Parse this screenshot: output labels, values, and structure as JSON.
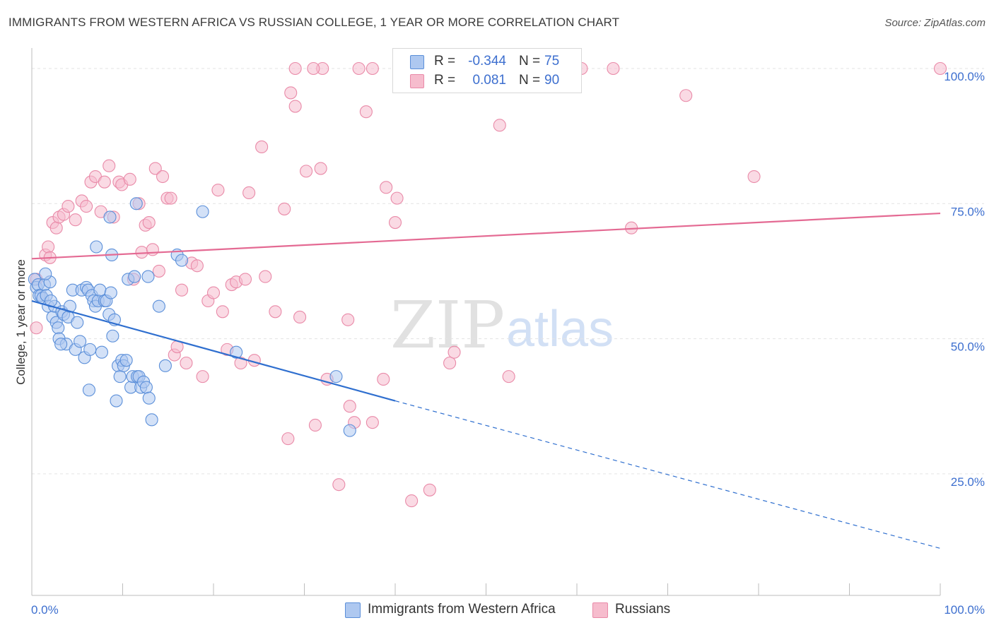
{
  "title": "IMMIGRANTS FROM WESTERN AFRICA VS RUSSIAN COLLEGE, 1 YEAR OR MORE CORRELATION CHART",
  "source": "Source: ZipAtlas.com",
  "watermark": {
    "zip": "ZIP",
    "atlas": "atlas"
  },
  "colors": {
    "blue_fill": "#aec8f0",
    "blue_stroke": "#5b8fd9",
    "blue_line": "#2f6fcf",
    "pink_fill": "#f6bccd",
    "pink_stroke": "#e98aa8",
    "pink_line": "#e46a93",
    "axis_text": "#3d6fcf",
    "grid": "#e3e3e3"
  },
  "legend": {
    "rows": [
      {
        "series": "blue",
        "r_label": "R =",
        "r_value": "-0.344",
        "n_label": "N =",
        "n_value": "75"
      },
      {
        "series": "pink",
        "r_label": "R =",
        "r_value": "0.081",
        "n_label": "N =",
        "n_value": "90"
      }
    ]
  },
  "chart_data": {
    "type": "scatter",
    "title": "IMMIGRANTS FROM WESTERN AFRICA VS RUSSIAN COLLEGE, 1 YEAR OR MORE CORRELATION CHART",
    "xlabel": "",
    "ylabel": "College, 1 year or more",
    "xlim": [
      0,
      100
    ],
    "ylim": [
      0,
      104
    ],
    "x_tick_labels": [
      "0.0%",
      "100.0%"
    ],
    "y_tick_values": [
      25,
      50,
      75,
      100
    ],
    "y_tick_labels": [
      "25.0%",
      "50.0%",
      "75.0%",
      "100.0%"
    ],
    "grid": true,
    "legend_position": "bottom",
    "series": [
      {
        "name": "Immigrants from Western Africa",
        "color": "blue",
        "trend": {
          "x0": 0,
          "y0": 57.0,
          "x1": 40,
          "y1": 38.5,
          "dash_to_x": 100,
          "dash_to_y": 11.2
        },
        "points": [
          [
            0.3,
            61
          ],
          [
            0.5,
            59.5
          ],
          [
            0.7,
            60
          ],
          [
            0.8,
            58
          ],
          [
            1,
            58
          ],
          [
            1.2,
            57.5
          ],
          [
            1.4,
            60
          ],
          [
            1.6,
            58
          ],
          [
            1.8,
            56
          ],
          [
            2,
            60.5
          ],
          [
            2.3,
            54
          ],
          [
            2.5,
            56
          ],
          [
            2.7,
            53
          ],
          [
            2.9,
            52
          ],
          [
            3,
            50
          ],
          [
            3.3,
            55
          ],
          [
            3.5,
            54.5
          ],
          [
            3.8,
            49
          ],
          [
            4,
            54
          ],
          [
            4.2,
            56
          ],
          [
            4.5,
            59
          ],
          [
            4.8,
            48
          ],
          [
            5,
            53
          ],
          [
            5.3,
            49.5
          ],
          [
            5.5,
            59
          ],
          [
            5.8,
            46.5
          ],
          [
            6,
            59.5
          ],
          [
            6.2,
            59
          ],
          [
            6.4,
            48
          ],
          [
            6.6,
            58
          ],
          [
            6.8,
            57
          ],
          [
            7,
            56
          ],
          [
            7.3,
            57
          ],
          [
            7.5,
            59
          ],
          [
            7.7,
            47.5
          ],
          [
            8,
            57
          ],
          [
            8.2,
            57
          ],
          [
            8.5,
            54.5
          ],
          [
            8.7,
            58.5
          ],
          [
            8.9,
            50.5
          ],
          [
            9.1,
            53.5
          ],
          [
            9.3,
            38.5
          ],
          [
            9.5,
            45
          ],
          [
            9.7,
            43
          ],
          [
            9.9,
            46
          ],
          [
            10.1,
            45
          ],
          [
            10.4,
            46
          ],
          [
            10.6,
            61
          ],
          [
            10.9,
            41
          ],
          [
            11.1,
            43
          ],
          [
            11.3,
            61.5
          ],
          [
            11.6,
            43
          ],
          [
            11.8,
            43
          ],
          [
            12,
            41
          ],
          [
            12.3,
            42
          ],
          [
            12.6,
            41
          ],
          [
            12.9,
            39
          ],
          [
            13.2,
            35
          ],
          [
            14,
            56
          ],
          [
            14.7,
            45
          ],
          [
            16,
            65.5
          ],
          [
            16.5,
            64.5
          ],
          [
            18.8,
            73.5
          ],
          [
            22.5,
            47.5
          ],
          [
            33.5,
            43
          ],
          [
            35,
            33
          ],
          [
            6.3,
            40.5
          ],
          [
            8.6,
            72.5
          ],
          [
            11.5,
            75
          ],
          [
            12.8,
            61.5
          ],
          [
            3.2,
            49
          ],
          [
            1.5,
            62
          ],
          [
            2.1,
            57
          ],
          [
            7.1,
            67
          ],
          [
            8.8,
            65.5
          ]
        ]
      },
      {
        "name": "Russians",
        "color": "pink",
        "trend": {
          "x0": 0,
          "y0": 64.8,
          "x1": 100,
          "y1": 73.2
        },
        "points": [
          [
            0.5,
            61
          ],
          [
            0.5,
            52
          ],
          [
            1.5,
            65.5
          ],
          [
            1.8,
            67
          ],
          [
            2,
            65
          ],
          [
            2.3,
            71.5
          ],
          [
            2.7,
            70.5
          ],
          [
            3,
            72.5
          ],
          [
            3.5,
            73
          ],
          [
            4,
            74.5
          ],
          [
            4.8,
            72
          ],
          [
            5.5,
            75.5
          ],
          [
            6,
            74.5
          ],
          [
            6.5,
            79
          ],
          [
            7,
            80
          ],
          [
            7.6,
            73.5
          ],
          [
            8,
            79
          ],
          [
            8.5,
            82
          ],
          [
            9,
            72.5
          ],
          [
            9.6,
            79
          ],
          [
            9.9,
            78.5
          ],
          [
            10.8,
            79.5
          ],
          [
            11.2,
            61
          ],
          [
            11.8,
            75
          ],
          [
            12.1,
            66
          ],
          [
            12.5,
            71
          ],
          [
            12.9,
            71.5
          ],
          [
            13.3,
            66.5
          ],
          [
            13.6,
            81.5
          ],
          [
            14,
            62.5
          ],
          [
            14.4,
            80
          ],
          [
            14.9,
            76
          ],
          [
            15.3,
            76
          ],
          [
            15.7,
            47
          ],
          [
            16,
            48.5
          ],
          [
            16.5,
            59
          ],
          [
            17,
            45.5
          ],
          [
            17.6,
            64
          ],
          [
            18.2,
            63.5
          ],
          [
            18.8,
            43
          ],
          [
            19.4,
            57
          ],
          [
            20,
            58.5
          ],
          [
            20.5,
            77.5
          ],
          [
            21,
            55
          ],
          [
            21.5,
            48
          ],
          [
            22,
            60
          ],
          [
            22.5,
            60.5
          ],
          [
            23,
            45.5
          ],
          [
            23.5,
            61
          ],
          [
            23.9,
            77
          ],
          [
            24.5,
            46
          ],
          [
            25.3,
            85.5
          ],
          [
            25.7,
            61.5
          ],
          [
            26.8,
            55
          ],
          [
            27.8,
            74
          ],
          [
            28.2,
            31.5
          ],
          [
            29,
            93
          ],
          [
            29.5,
            54
          ],
          [
            30.2,
            81
          ],
          [
            31.2,
            34
          ],
          [
            31.8,
            81.5
          ],
          [
            32.5,
            42.5
          ],
          [
            33.8,
            23
          ],
          [
            34.8,
            53.5
          ],
          [
            35,
            37.5
          ],
          [
            35.5,
            34.5
          ],
          [
            36.8,
            92
          ],
          [
            37.5,
            34.5
          ],
          [
            38.7,
            42.5
          ],
          [
            39,
            78
          ],
          [
            40.2,
            76
          ],
          [
            41.8,
            20
          ],
          [
            43.8,
            22
          ],
          [
            46,
            45.5
          ],
          [
            46.5,
            47.5
          ],
          [
            51.5,
            89.5
          ],
          [
            52.5,
            43
          ],
          [
            60.5,
            100
          ],
          [
            64,
            100
          ],
          [
            66,
            70.5
          ],
          [
            72,
            95
          ],
          [
            79.5,
            80
          ],
          [
            100,
            100
          ],
          [
            40,
            71.5
          ],
          [
            37.5,
            100
          ],
          [
            36,
            100
          ],
          [
            32,
            100
          ],
          [
            31,
            100
          ],
          [
            29,
            100
          ],
          [
            28.5,
            95.5
          ]
        ]
      }
    ]
  },
  "bottom_legend": [
    {
      "series": "blue",
      "label": "Immigrants from Western Africa"
    },
    {
      "series": "pink",
      "label": "Russians"
    }
  ]
}
